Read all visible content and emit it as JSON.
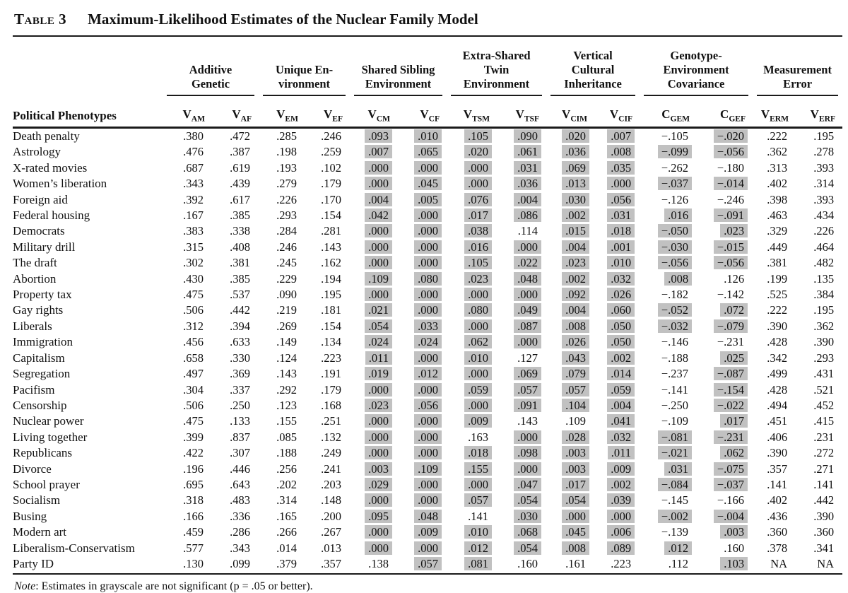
{
  "title": {
    "table_label": "Table 3",
    "table_title": "Maximum-Likelihood Estimates of the Nuclear Family Model"
  },
  "note": {
    "prefix": "Note",
    "body": ": Estimates in grayscale are not significant (p = .05 or better)."
  },
  "colors": {
    "shade": "#c1c1c1",
    "text": "#111111",
    "rule": "#1a1a1a"
  },
  "header": {
    "phenotype_label": "Political Phenotypes",
    "groups": [
      {
        "lines": [
          "Additive",
          "Genetic"
        ]
      },
      {
        "lines": [
          "Unique En-",
          "vironment"
        ]
      },
      {
        "lines": [
          "Shared Sibling",
          "Environment"
        ]
      },
      {
        "lines": [
          "Extra-Shared",
          "Twin",
          "Environment"
        ]
      },
      {
        "lines": [
          "Vertical",
          "Cultural",
          "Inheritance"
        ]
      },
      {
        "lines": [
          "Genotype-",
          "Environment",
          "Covariance"
        ]
      },
      {
        "lines": [
          "Measurement",
          "Error"
        ]
      }
    ],
    "columns": [
      {
        "base": "V",
        "sub": "AM"
      },
      {
        "base": "V",
        "sub": "AF"
      },
      {
        "base": "V",
        "sub": "EM"
      },
      {
        "base": "V",
        "sub": "EF"
      },
      {
        "base": "V",
        "sub": "CM"
      },
      {
        "base": "V",
        "sub": "CF"
      },
      {
        "base": "V",
        "sub": "TSM"
      },
      {
        "base": "V",
        "sub": "TSF"
      },
      {
        "base": "V",
        "sub": "CIM"
      },
      {
        "base": "V",
        "sub": "CIF"
      },
      {
        "base": "C",
        "sub": "GEM"
      },
      {
        "base": "C",
        "sub": "GEF"
      },
      {
        "base": "V",
        "sub": "ERM"
      },
      {
        "base": "V",
        "sub": "ERF"
      }
    ]
  },
  "rows": [
    {
      "phenotype": "Death penalty",
      "values": [
        ".380",
        ".472",
        ".285",
        ".246",
        ".093",
        ".010",
        ".105",
        ".090",
        ".020",
        ".007",
        "−.105",
        "−.020",
        ".222",
        ".195"
      ],
      "shaded": [
        false,
        false,
        false,
        false,
        true,
        true,
        true,
        true,
        true,
        true,
        false,
        true,
        false,
        false
      ]
    },
    {
      "phenotype": "Astrology",
      "values": [
        ".476",
        ".387",
        ".198",
        ".259",
        ".007",
        ".065",
        ".020",
        ".061",
        ".036",
        ".008",
        "−.099",
        "−.056",
        ".362",
        ".278"
      ],
      "shaded": [
        false,
        false,
        false,
        false,
        true,
        true,
        true,
        true,
        true,
        true,
        true,
        true,
        false,
        false
      ]
    },
    {
      "phenotype": "X-rated movies",
      "values": [
        ".687",
        ".619",
        ".193",
        ".102",
        ".000",
        ".000",
        ".000",
        ".031",
        ".069",
        ".035",
        "−.262",
        "−.180",
        ".313",
        ".393"
      ],
      "shaded": [
        false,
        false,
        false,
        false,
        true,
        true,
        true,
        true,
        true,
        true,
        false,
        false,
        false,
        false
      ]
    },
    {
      "phenotype": "Women’s liberation",
      "values": [
        ".343",
        ".439",
        ".279",
        ".179",
        ".000",
        ".045",
        ".000",
        ".036",
        ".013",
        ".000",
        "−.037",
        "−.014",
        ".402",
        ".314"
      ],
      "shaded": [
        false,
        false,
        false,
        false,
        true,
        true,
        true,
        true,
        true,
        true,
        true,
        true,
        false,
        false
      ]
    },
    {
      "phenotype": "Foreign aid",
      "values": [
        ".392",
        ".617",
        ".226",
        ".170",
        ".004",
        ".005",
        ".076",
        ".004",
        ".030",
        ".056",
        "−.126",
        "−.246",
        ".398",
        ".393"
      ],
      "shaded": [
        false,
        false,
        false,
        false,
        true,
        true,
        true,
        true,
        true,
        true,
        false,
        false,
        false,
        false
      ]
    },
    {
      "phenotype": "Federal housing",
      "values": [
        ".167",
        ".385",
        ".293",
        ".154",
        ".042",
        ".000",
        ".017",
        ".086",
        ".002",
        ".031",
        ".016",
        "−.091",
        ".463",
        ".434"
      ],
      "shaded": [
        false,
        false,
        false,
        false,
        true,
        true,
        true,
        true,
        true,
        true,
        true,
        true,
        false,
        false
      ]
    },
    {
      "phenotype": "Democrats",
      "values": [
        ".383",
        ".338",
        ".284",
        ".281",
        ".000",
        ".000",
        ".038",
        ".114",
        ".015",
        ".018",
        "−.050",
        ".023",
        ".329",
        ".226"
      ],
      "shaded": [
        false,
        false,
        false,
        false,
        true,
        true,
        true,
        false,
        true,
        true,
        true,
        true,
        false,
        false
      ]
    },
    {
      "phenotype": "Military drill",
      "values": [
        ".315",
        ".408",
        ".246",
        ".143",
        ".000",
        ".000",
        ".016",
        ".000",
        ".004",
        ".001",
        "−.030",
        "−.015",
        ".449",
        ".464"
      ],
      "shaded": [
        false,
        false,
        false,
        false,
        true,
        true,
        true,
        true,
        true,
        true,
        true,
        true,
        false,
        false
      ]
    },
    {
      "phenotype": "The draft",
      "values": [
        ".302",
        ".381",
        ".245",
        ".162",
        ".000",
        ".000",
        ".105",
        ".022",
        ".023",
        ".010",
        "−.056",
        "−.056",
        ".381",
        ".482"
      ],
      "shaded": [
        false,
        false,
        false,
        false,
        true,
        true,
        true,
        true,
        true,
        true,
        true,
        true,
        false,
        false
      ]
    },
    {
      "phenotype": "Abortion",
      "values": [
        ".430",
        ".385",
        ".229",
        ".194",
        ".109",
        ".080",
        ".023",
        ".048",
        ".002",
        ".032",
        ".008",
        ".126",
        ".199",
        ".135"
      ],
      "shaded": [
        false,
        false,
        false,
        false,
        true,
        true,
        true,
        true,
        true,
        true,
        true,
        false,
        false,
        false
      ]
    },
    {
      "phenotype": "Property tax",
      "values": [
        ".475",
        ".537",
        ".090",
        ".195",
        ".000",
        ".000",
        ".000",
        ".000",
        ".092",
        ".026",
        "−.182",
        "−.142",
        ".525",
        ".384"
      ],
      "shaded": [
        false,
        false,
        false,
        false,
        true,
        true,
        true,
        true,
        true,
        true,
        false,
        false,
        false,
        false
      ]
    },
    {
      "phenotype": "Gay rights",
      "values": [
        ".506",
        ".442",
        ".219",
        ".181",
        ".021",
        ".000",
        ".080",
        ".049",
        ".004",
        ".060",
        "−.052",
        ".072",
        ".222",
        ".195"
      ],
      "shaded": [
        false,
        false,
        false,
        false,
        true,
        true,
        true,
        true,
        true,
        true,
        true,
        true,
        false,
        false
      ]
    },
    {
      "phenotype": "Liberals",
      "values": [
        ".312",
        ".394",
        ".269",
        ".154",
        ".054",
        ".033",
        ".000",
        ".087",
        ".008",
        ".050",
        "−.032",
        "−.079",
        ".390",
        ".362"
      ],
      "shaded": [
        false,
        false,
        false,
        false,
        true,
        true,
        true,
        true,
        true,
        true,
        true,
        true,
        false,
        false
      ]
    },
    {
      "phenotype": "Immigration",
      "values": [
        ".456",
        ".633",
        ".149",
        ".134",
        ".024",
        ".024",
        ".062",
        ".000",
        ".026",
        ".050",
        "−.146",
        "−.231",
        ".428",
        ".390"
      ],
      "shaded": [
        false,
        false,
        false,
        false,
        true,
        true,
        true,
        true,
        true,
        true,
        false,
        false,
        false,
        false
      ]
    },
    {
      "phenotype": "Capitalism",
      "values": [
        ".658",
        ".330",
        ".124",
        ".223",
        ".011",
        ".000",
        ".010",
        ".127",
        ".043",
        ".002",
        "−.188",
        ".025",
        ".342",
        ".293"
      ],
      "shaded": [
        false,
        false,
        false,
        false,
        true,
        true,
        true,
        false,
        true,
        true,
        false,
        true,
        false,
        false
      ]
    },
    {
      "phenotype": "Segregation",
      "values": [
        ".497",
        ".369",
        ".143",
        ".191",
        ".019",
        ".012",
        ".000",
        ".069",
        ".079",
        ".014",
        "−.237",
        "−.087",
        ".499",
        ".431"
      ],
      "shaded": [
        false,
        false,
        false,
        false,
        true,
        true,
        true,
        true,
        true,
        true,
        false,
        true,
        false,
        false
      ]
    },
    {
      "phenotype": "Pacifism",
      "values": [
        ".304",
        ".337",
        ".292",
        ".179",
        ".000",
        ".000",
        ".059",
        ".057",
        ".057",
        ".059",
        "−.141",
        "−.154",
        ".428",
        ".521"
      ],
      "shaded": [
        false,
        false,
        false,
        false,
        true,
        true,
        true,
        true,
        true,
        true,
        false,
        true,
        false,
        false
      ]
    },
    {
      "phenotype": "Censorship",
      "values": [
        ".506",
        ".250",
        ".123",
        ".168",
        ".023",
        ".056",
        ".000",
        ".091",
        ".104",
        ".004",
        "−.250",
        "−.022",
        ".494",
        ".452"
      ],
      "shaded": [
        false,
        false,
        false,
        false,
        true,
        true,
        true,
        true,
        true,
        true,
        false,
        true,
        false,
        false
      ]
    },
    {
      "phenotype": "Nuclear power",
      "values": [
        ".475",
        ".133",
        ".155",
        ".251",
        ".000",
        ".000",
        ".009",
        ".143",
        ".109",
        ".041",
        "−.109",
        ".017",
        ".451",
        ".415"
      ],
      "shaded": [
        false,
        false,
        false,
        false,
        true,
        true,
        true,
        false,
        false,
        true,
        false,
        true,
        false,
        false
      ]
    },
    {
      "phenotype": "Living together",
      "values": [
        ".399",
        ".837",
        ".085",
        ".132",
        ".000",
        ".000",
        ".163",
        ".000",
        ".028",
        ".032",
        "−.081",
        "−.231",
        ".406",
        ".231"
      ],
      "shaded": [
        false,
        false,
        false,
        false,
        true,
        true,
        false,
        true,
        true,
        true,
        true,
        true,
        false,
        false
      ]
    },
    {
      "phenotype": "Republicans",
      "values": [
        ".422",
        ".307",
        ".188",
        ".249",
        ".000",
        ".000",
        ".018",
        ".098",
        ".003",
        ".011",
        "−.021",
        ".062",
        ".390",
        ".272"
      ],
      "shaded": [
        false,
        false,
        false,
        false,
        true,
        true,
        true,
        true,
        true,
        true,
        true,
        true,
        false,
        false
      ]
    },
    {
      "phenotype": "Divorce",
      "values": [
        ".196",
        ".446",
        ".256",
        ".241",
        ".003",
        ".109",
        ".155",
        ".000",
        ".003",
        ".009",
        ".031",
        "−.075",
        ".357",
        ".271"
      ],
      "shaded": [
        false,
        false,
        false,
        false,
        true,
        true,
        true,
        true,
        true,
        true,
        true,
        true,
        false,
        false
      ]
    },
    {
      "phenotype": "School prayer",
      "values": [
        ".695",
        ".643",
        ".202",
        ".203",
        ".029",
        ".000",
        ".000",
        ".047",
        ".017",
        ".002",
        "−.084",
        "−.037",
        ".141",
        ".141"
      ],
      "shaded": [
        false,
        false,
        false,
        false,
        true,
        true,
        true,
        true,
        true,
        true,
        true,
        true,
        false,
        false
      ]
    },
    {
      "phenotype": "Socialism",
      "values": [
        ".318",
        ".483",
        ".314",
        ".148",
        ".000",
        ".000",
        ".057",
        ".054",
        ".054",
        ".039",
        "−.145",
        "−.166",
        ".402",
        ".442"
      ],
      "shaded": [
        false,
        false,
        false,
        false,
        true,
        true,
        true,
        true,
        true,
        true,
        false,
        false,
        false,
        false
      ]
    },
    {
      "phenotype": "Busing",
      "values": [
        ".166",
        ".336",
        ".165",
        ".200",
        ".095",
        ".048",
        ".141",
        ".030",
        ".000",
        ".000",
        "−.002",
        "−.004",
        ".436",
        ".390"
      ],
      "shaded": [
        false,
        false,
        false,
        false,
        true,
        true,
        false,
        true,
        true,
        true,
        true,
        true,
        false,
        false
      ]
    },
    {
      "phenotype": "Modern art",
      "values": [
        ".459",
        ".286",
        ".266",
        ".267",
        ".000",
        ".009",
        ".010",
        ".068",
        ".045",
        ".006",
        "−.139",
        ".003",
        ".360",
        ".360"
      ],
      "shaded": [
        false,
        false,
        false,
        false,
        true,
        true,
        true,
        true,
        true,
        true,
        false,
        true,
        false,
        false
      ]
    },
    {
      "phenotype": "Liberalism-Conservatism",
      "values": [
        ".577",
        ".343",
        ".014",
        ".013",
        ".000",
        ".000",
        ".012",
        ".054",
        ".008",
        ".089",
        ".012",
        ".160",
        ".378",
        ".341"
      ],
      "shaded": [
        false,
        false,
        false,
        false,
        true,
        true,
        true,
        true,
        true,
        true,
        true,
        false,
        false,
        false
      ]
    },
    {
      "phenotype": "Party ID",
      "values": [
        ".130",
        ".099",
        ".379",
        ".357",
        ".138",
        ".057",
        ".081",
        ".160",
        ".161",
        ".223",
        ".112",
        ".103",
        "NA",
        "NA"
      ],
      "shaded": [
        false,
        false,
        false,
        false,
        false,
        true,
        true,
        false,
        false,
        false,
        false,
        true,
        false,
        false
      ]
    }
  ]
}
